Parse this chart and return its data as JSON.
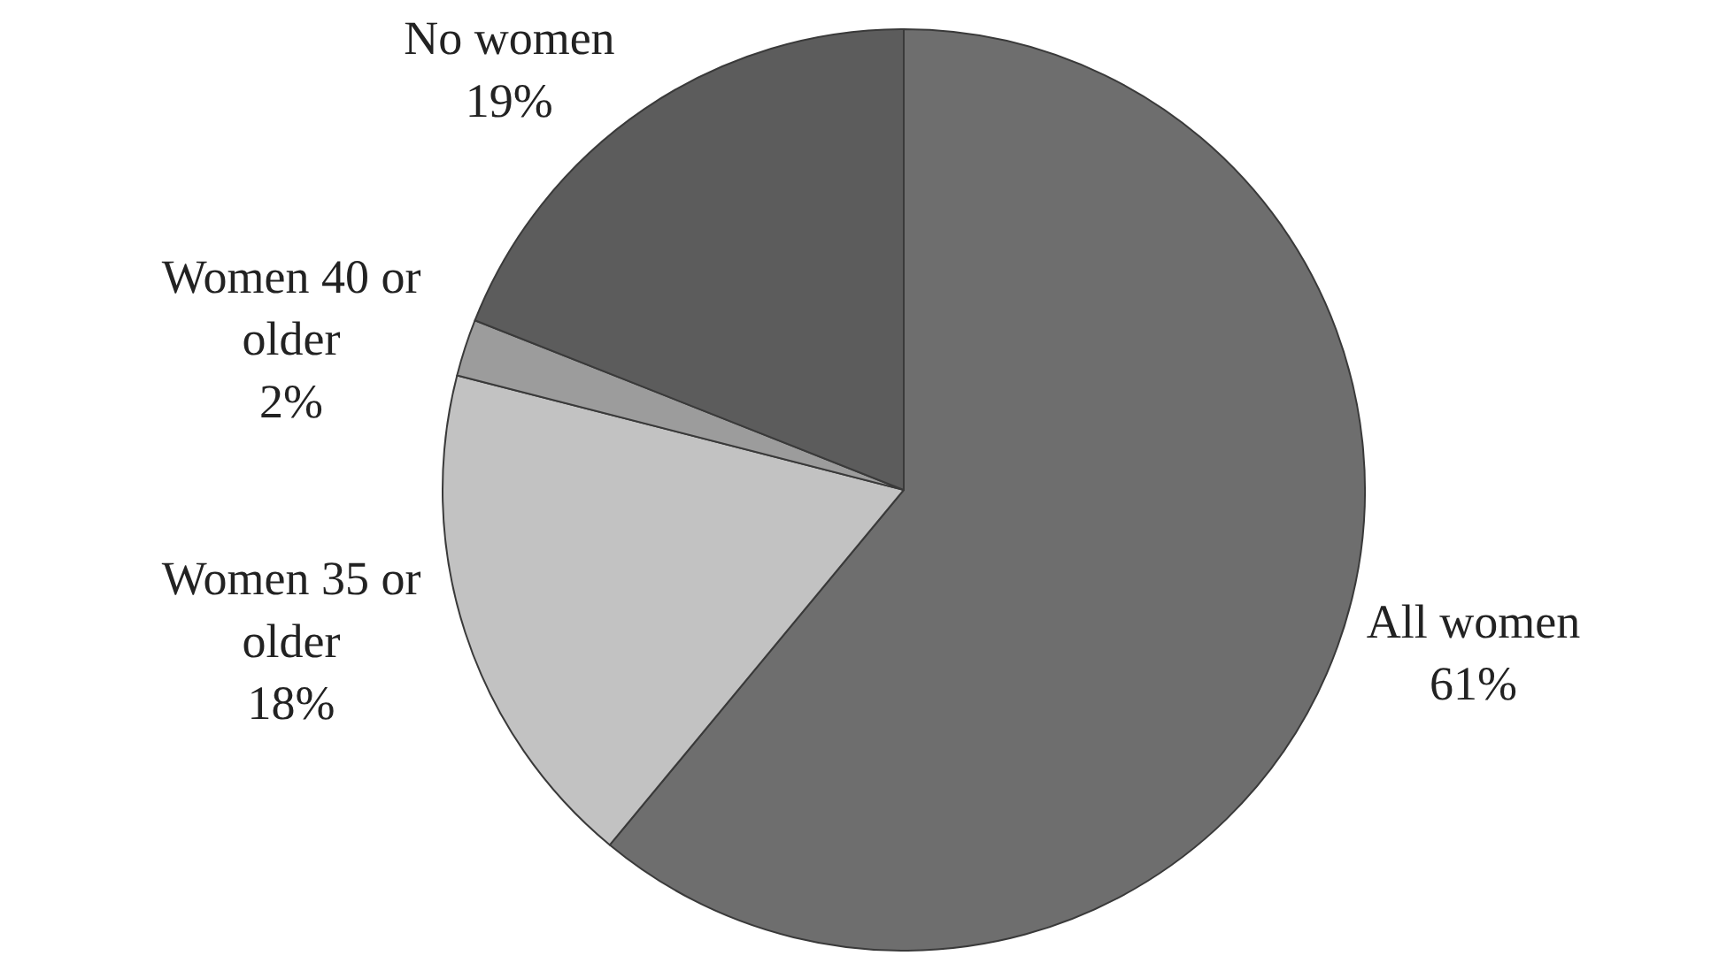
{
  "chart_data": {
    "type": "pie",
    "categories": [
      "All women",
      "Women 35 or older",
      "Women 40 or older",
      "No women"
    ],
    "values": [
      61,
      18,
      2,
      19
    ],
    "value_labels": [
      "61%",
      "18%",
      "2%",
      "19%"
    ],
    "colors": [
      "#6e6e6e",
      "#c2c2c2",
      "#9c9c9c",
      "#5c5c5c"
    ],
    "legend": false
  }
}
